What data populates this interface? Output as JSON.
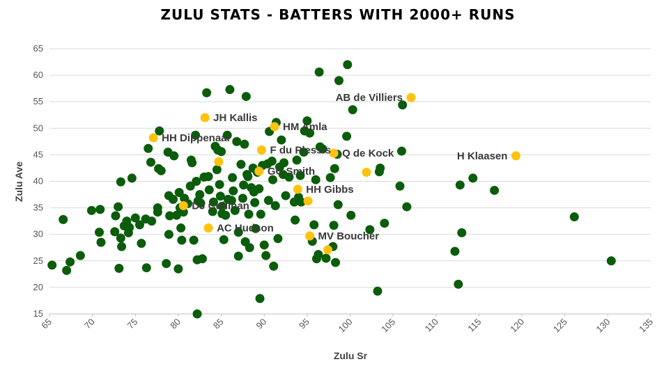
{
  "chart_data": {
    "type": "scatter",
    "title": "ZULU STATS - BATTERS WITH 2000+ RUNS",
    "xlabel": "Zulu Sr",
    "ylabel": "Zulu Ave",
    "xlim": [
      65,
      135
    ],
    "ylim": [
      15,
      65
    ],
    "x_ticks": [
      65,
      70,
      75,
      80,
      85,
      90,
      95,
      100,
      105,
      110,
      115,
      120,
      125,
      130,
      135
    ],
    "y_ticks": [
      15,
      20,
      25,
      30,
      35,
      40,
      45,
      50,
      55,
      60,
      65
    ],
    "grid": "horizontal",
    "colors": {
      "others": "#0b5c0b",
      "highlighted": "#ffc20e"
    },
    "series": [
      {
        "color": "#0b5c0b",
        "points": [
          [
            65.3,
            24.2
          ],
          [
            66.6,
            32.8
          ],
          [
            67.0,
            23.2
          ],
          [
            67.4,
            24.8
          ],
          [
            68.6,
            26.0
          ],
          [
            69.9,
            34.5
          ],
          [
            70.9,
            34.7
          ],
          [
            70.8,
            30.4
          ],
          [
            71.0,
            28.5
          ],
          [
            72.6,
            30.5
          ],
          [
            72.7,
            33.5
          ],
          [
            73.0,
            35.2
          ],
          [
            73.3,
            39.9
          ],
          [
            73.1,
            23.6
          ],
          [
            73.3,
            29.3
          ],
          [
            73.4,
            27.7
          ],
          [
            73.7,
            31.6
          ],
          [
            74.0,
            32.5
          ],
          [
            74.3,
            31.3
          ],
          [
            74.6,
            40.6
          ],
          [
            74.2,
            30.3
          ],
          [
            75.0,
            33.1
          ],
          [
            75.5,
            31.8
          ],
          [
            75.7,
            28.3
          ],
          [
            76.2,
            32.9
          ],
          [
            76.3,
            23.7
          ],
          [
            76.5,
            46.2
          ],
          [
            76.8,
            43.6
          ],
          [
            76.9,
            32.5
          ],
          [
            77.6,
            35.0
          ],
          [
            77.6,
            34.2
          ],
          [
            77.7,
            42.4
          ],
          [
            77.8,
            49.5
          ],
          [
            78.0,
            42.0
          ],
          [
            78.6,
            24.5
          ],
          [
            78.8,
            45.5
          ],
          [
            78.9,
            37.3
          ],
          [
            79.0,
            33.5
          ],
          [
            78.9,
            30.0
          ],
          [
            79.5,
            44.8
          ],
          [
            79.4,
            36.6
          ],
          [
            79.8,
            33.6
          ],
          [
            80.0,
            23.5
          ],
          [
            80.1,
            37.9
          ],
          [
            80.2,
            35.0
          ],
          [
            80.3,
            31.2
          ],
          [
            80.4,
            28.9
          ],
          [
            80.6,
            34.2
          ],
          [
            80.7,
            36.8
          ],
          [
            81.1,
            35.8
          ],
          [
            81.4,
            39.1
          ],
          [
            81.5,
            44.0
          ],
          [
            81.6,
            43.5
          ],
          [
            81.8,
            28.9
          ],
          [
            82.0,
            48.7
          ],
          [
            82.1,
            40.0
          ],
          [
            82.2,
            25.2
          ],
          [
            82.2,
            15.0
          ],
          [
            82.3,
            36.3
          ],
          [
            82.5,
            37.5
          ],
          [
            82.6,
            35.9
          ],
          [
            82.8,
            25.4
          ],
          [
            83.0,
            40.8
          ],
          [
            83.3,
            56.7
          ],
          [
            83.5,
            40.9
          ],
          [
            83.6,
            38.4
          ],
          [
            84.1,
            36.1
          ],
          [
            84.0,
            34.3
          ],
          [
            84.3,
            46.6
          ],
          [
            84.5,
            42.2
          ],
          [
            84.6,
            45.9
          ],
          [
            84.8,
            39.4
          ],
          [
            84.9,
            37.2
          ],
          [
            85.0,
            45.6
          ],
          [
            85.1,
            35.3
          ],
          [
            85.1,
            33.9
          ],
          [
            85.3,
            29.0
          ],
          [
            85.5,
            33.6
          ],
          [
            85.7,
            48.7
          ],
          [
            85.8,
            36.6
          ],
          [
            86.0,
            57.3
          ],
          [
            86.2,
            36.4
          ],
          [
            86.3,
            40.7
          ],
          [
            86.4,
            38.2
          ],
          [
            86.6,
            34.5
          ],
          [
            86.8,
            47.5
          ],
          [
            87.0,
            30.4
          ],
          [
            87.0,
            25.9
          ],
          [
            87.3,
            43.2
          ],
          [
            87.5,
            36.8
          ],
          [
            87.6,
            39.3
          ],
          [
            87.7,
            47.0
          ],
          [
            87.8,
            28.6
          ],
          [
            87.9,
            56.0
          ],
          [
            88.0,
            41.3
          ],
          [
            88.1,
            40.9
          ],
          [
            88.2,
            33.8
          ],
          [
            88.3,
            27.5
          ],
          [
            88.5,
            38.8
          ],
          [
            88.7,
            42.5
          ],
          [
            88.8,
            38.0
          ],
          [
            88.9,
            36.0
          ],
          [
            89.0,
            31.1
          ],
          [
            89.2,
            41.7
          ],
          [
            89.4,
            38.6
          ],
          [
            89.5,
            17.9
          ],
          [
            89.6,
            33.8
          ],
          [
            89.8,
            43.0
          ],
          [
            90.0,
            28.0
          ],
          [
            90.2,
            26.0
          ],
          [
            90.4,
            43.3
          ],
          [
            90.5,
            36.4
          ],
          [
            90.6,
            49.4
          ],
          [
            90.9,
            43.8
          ],
          [
            91.0,
            40.3
          ],
          [
            91.1,
            24.0
          ],
          [
            91.3,
            35.4
          ],
          [
            91.4,
            51.1
          ],
          [
            91.6,
            29.2
          ],
          [
            91.8,
            42.7
          ],
          [
            92.0,
            47.8
          ],
          [
            92.2,
            41.3
          ],
          [
            92.3,
            43.5
          ],
          [
            92.5,
            37.3
          ],
          [
            92.9,
            40.8
          ],
          [
            93.5,
            36.1
          ],
          [
            93.6,
            32.7
          ],
          [
            93.8,
            44.0
          ],
          [
            94.0,
            37.0
          ],
          [
            94.2,
            41.1
          ],
          [
            94.3,
            36.1
          ],
          [
            94.6,
            45.5
          ],
          [
            94.7,
            49.5
          ],
          [
            95.0,
            51.4
          ],
          [
            95.3,
            49.1
          ],
          [
            95.6,
            28.7
          ],
          [
            95.8,
            31.8
          ],
          [
            96.0,
            40.3
          ],
          [
            96.4,
            60.6
          ],
          [
            96.1,
            25.4
          ],
          [
            96.3,
            26.2
          ],
          [
            96.5,
            46.5
          ],
          [
            96.8,
            46.1
          ],
          [
            97.2,
            25.5
          ],
          [
            97.7,
            40.7
          ],
          [
            98.0,
            27.7
          ],
          [
            98.1,
            31.7
          ],
          [
            98.2,
            42.4
          ],
          [
            98.3,
            24.7
          ],
          [
            98.5,
            45.1
          ],
          [
            98.6,
            35.6
          ],
          [
            98.7,
            59.0
          ],
          [
            99.6,
            48.5
          ],
          [
            99.7,
            62.0
          ],
          [
            100.1,
            33.6
          ],
          [
            100.3,
            53.5
          ],
          [
            102.3,
            30.9
          ],
          [
            103.2,
            19.3
          ],
          [
            103.4,
            41.8
          ],
          [
            103.5,
            42.5
          ],
          [
            104.0,
            32.1
          ],
          [
            105.8,
            39.1
          ],
          [
            106.0,
            45.7
          ],
          [
            106.1,
            54.4
          ],
          [
            106.6,
            35.2
          ],
          [
            112.2,
            26.8
          ],
          [
            112.6,
            20.6
          ],
          [
            112.8,
            39.3
          ],
          [
            113.0,
            30.3
          ],
          [
            114.3,
            40.6
          ],
          [
            116.8,
            38.3
          ],
          [
            126.1,
            33.3
          ],
          [
            130.4,
            25.0
          ]
        ]
      },
      {
        "color": "#ffc20e",
        "points": [
          [
            107.1,
            55.8
          ],
          [
            83.1,
            52.0
          ],
          [
            91.2,
            50.3
          ],
          [
            77.1,
            48.2
          ],
          [
            89.7,
            45.9
          ],
          [
            98.1,
            45.3
          ],
          [
            119.3,
            44.8
          ],
          [
            84.7,
            43.7
          ],
          [
            89.4,
            41.9
          ],
          [
            93.9,
            38.5
          ],
          [
            95.1,
            36.3
          ],
          [
            80.6,
            35.4
          ],
          [
            83.5,
            31.2
          ],
          [
            95.3,
            29.7
          ],
          [
            97.4,
            27.1
          ],
          [
            101.9,
            41.7
          ]
        ]
      }
    ],
    "annotations": [
      {
        "text": "AB de Villiers",
        "x": 107.1,
        "y": 55.8,
        "anchor": "end"
      },
      {
        "text": "JH Kallis",
        "x": 83.1,
        "y": 52.0,
        "anchor": "start"
      },
      {
        "text": "HM Amla",
        "x": 91.2,
        "y": 50.3,
        "anchor": "start"
      },
      {
        "text": "HH Dippenaar",
        "x": 77.1,
        "y": 48.2,
        "anchor": "start"
      },
      {
        "text": "F du Plessis",
        "x": 89.7,
        "y": 45.9,
        "anchor": "start"
      },
      {
        "text": "Q de Kock",
        "x": 98.1,
        "y": 45.3,
        "anchor": "start"
      },
      {
        "text": "H Klaasen",
        "x": 119.3,
        "y": 44.8,
        "anchor": "end"
      },
      {
        "text": "GC Smith",
        "x": 89.4,
        "y": 41.9,
        "anchor": "start"
      },
      {
        "text": "HH Gibbs",
        "x": 93.9,
        "y": 38.5,
        "anchor": "start"
      },
      {
        "text": "DJ Cullinan",
        "x": 80.6,
        "y": 35.4,
        "anchor": "start"
      },
      {
        "text": "AC Hudson",
        "x": 83.5,
        "y": 31.2,
        "anchor": "start"
      },
      {
        "text": "MV Boucher",
        "x": 95.3,
        "y": 29.7,
        "anchor": "start"
      }
    ]
  }
}
